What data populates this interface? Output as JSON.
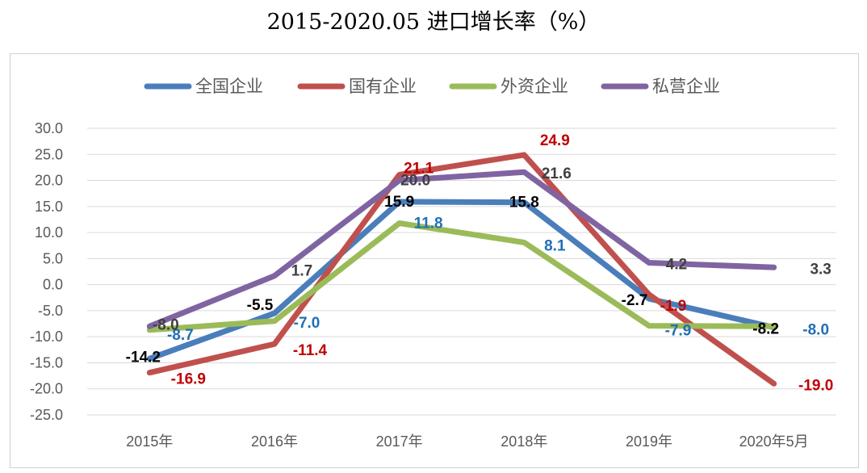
{
  "title": "2015-2020.05 进口增长率（%）",
  "chart_data": {
    "type": "line",
    "title": "2015-2020.05 进口增长率（%）",
    "categories": [
      "2015年",
      "2016年",
      "2017年",
      "2018年",
      "2019年",
      "2020年5月"
    ],
    "y_ticks": [
      "30.0",
      "25.0",
      "20.0",
      "15.0",
      "10.0",
      "5.0",
      "0.0",
      "-5.0",
      "-10.0",
      "-15.0",
      "-20.0",
      "-25.0"
    ],
    "ylim": [
      -25,
      30
    ],
    "grid": true,
    "legend_position": "top",
    "series": [
      {
        "name": "全国企业",
        "color": "#4a7ebb",
        "label_color": "#000000",
        "values": [
          -14.2,
          -5.5,
          15.9,
          15.8,
          -2.7,
          -8.2
        ],
        "labels": [
          "-14.2",
          "-5.5",
          "15.9",
          "15.8",
          "-2.7",
          "-8.2"
        ]
      },
      {
        "name": "国有企业",
        "color": "#c0504d",
        "label_color": "#c00000",
        "values": [
          -16.9,
          -11.4,
          21.1,
          24.9,
          -1.9,
          -19.0
        ],
        "labels": [
          "-16.9",
          "-11.4",
          "21.1",
          "24.9",
          "-1.9",
          "-19.0"
        ]
      },
      {
        "name": "外资企业",
        "color": "#9bbb59",
        "label_color": "#1f6fb5",
        "values": [
          -8.7,
          -7.0,
          11.8,
          8.1,
          -7.9,
          -8.0
        ],
        "labels": [
          "-8.7",
          "-7.0",
          "11.8",
          "8.1",
          "-7.9",
          "-8.0"
        ]
      },
      {
        "name": "私营企业",
        "color": "#8064a2",
        "label_color": "#404040",
        "values": [
          -8.0,
          1.7,
          20.0,
          21.6,
          4.2,
          3.3
        ],
        "labels": [
          "-8.0",
          "1.7",
          "20.0",
          "21.6",
          "4.2",
          "3.3"
        ]
      }
    ]
  }
}
